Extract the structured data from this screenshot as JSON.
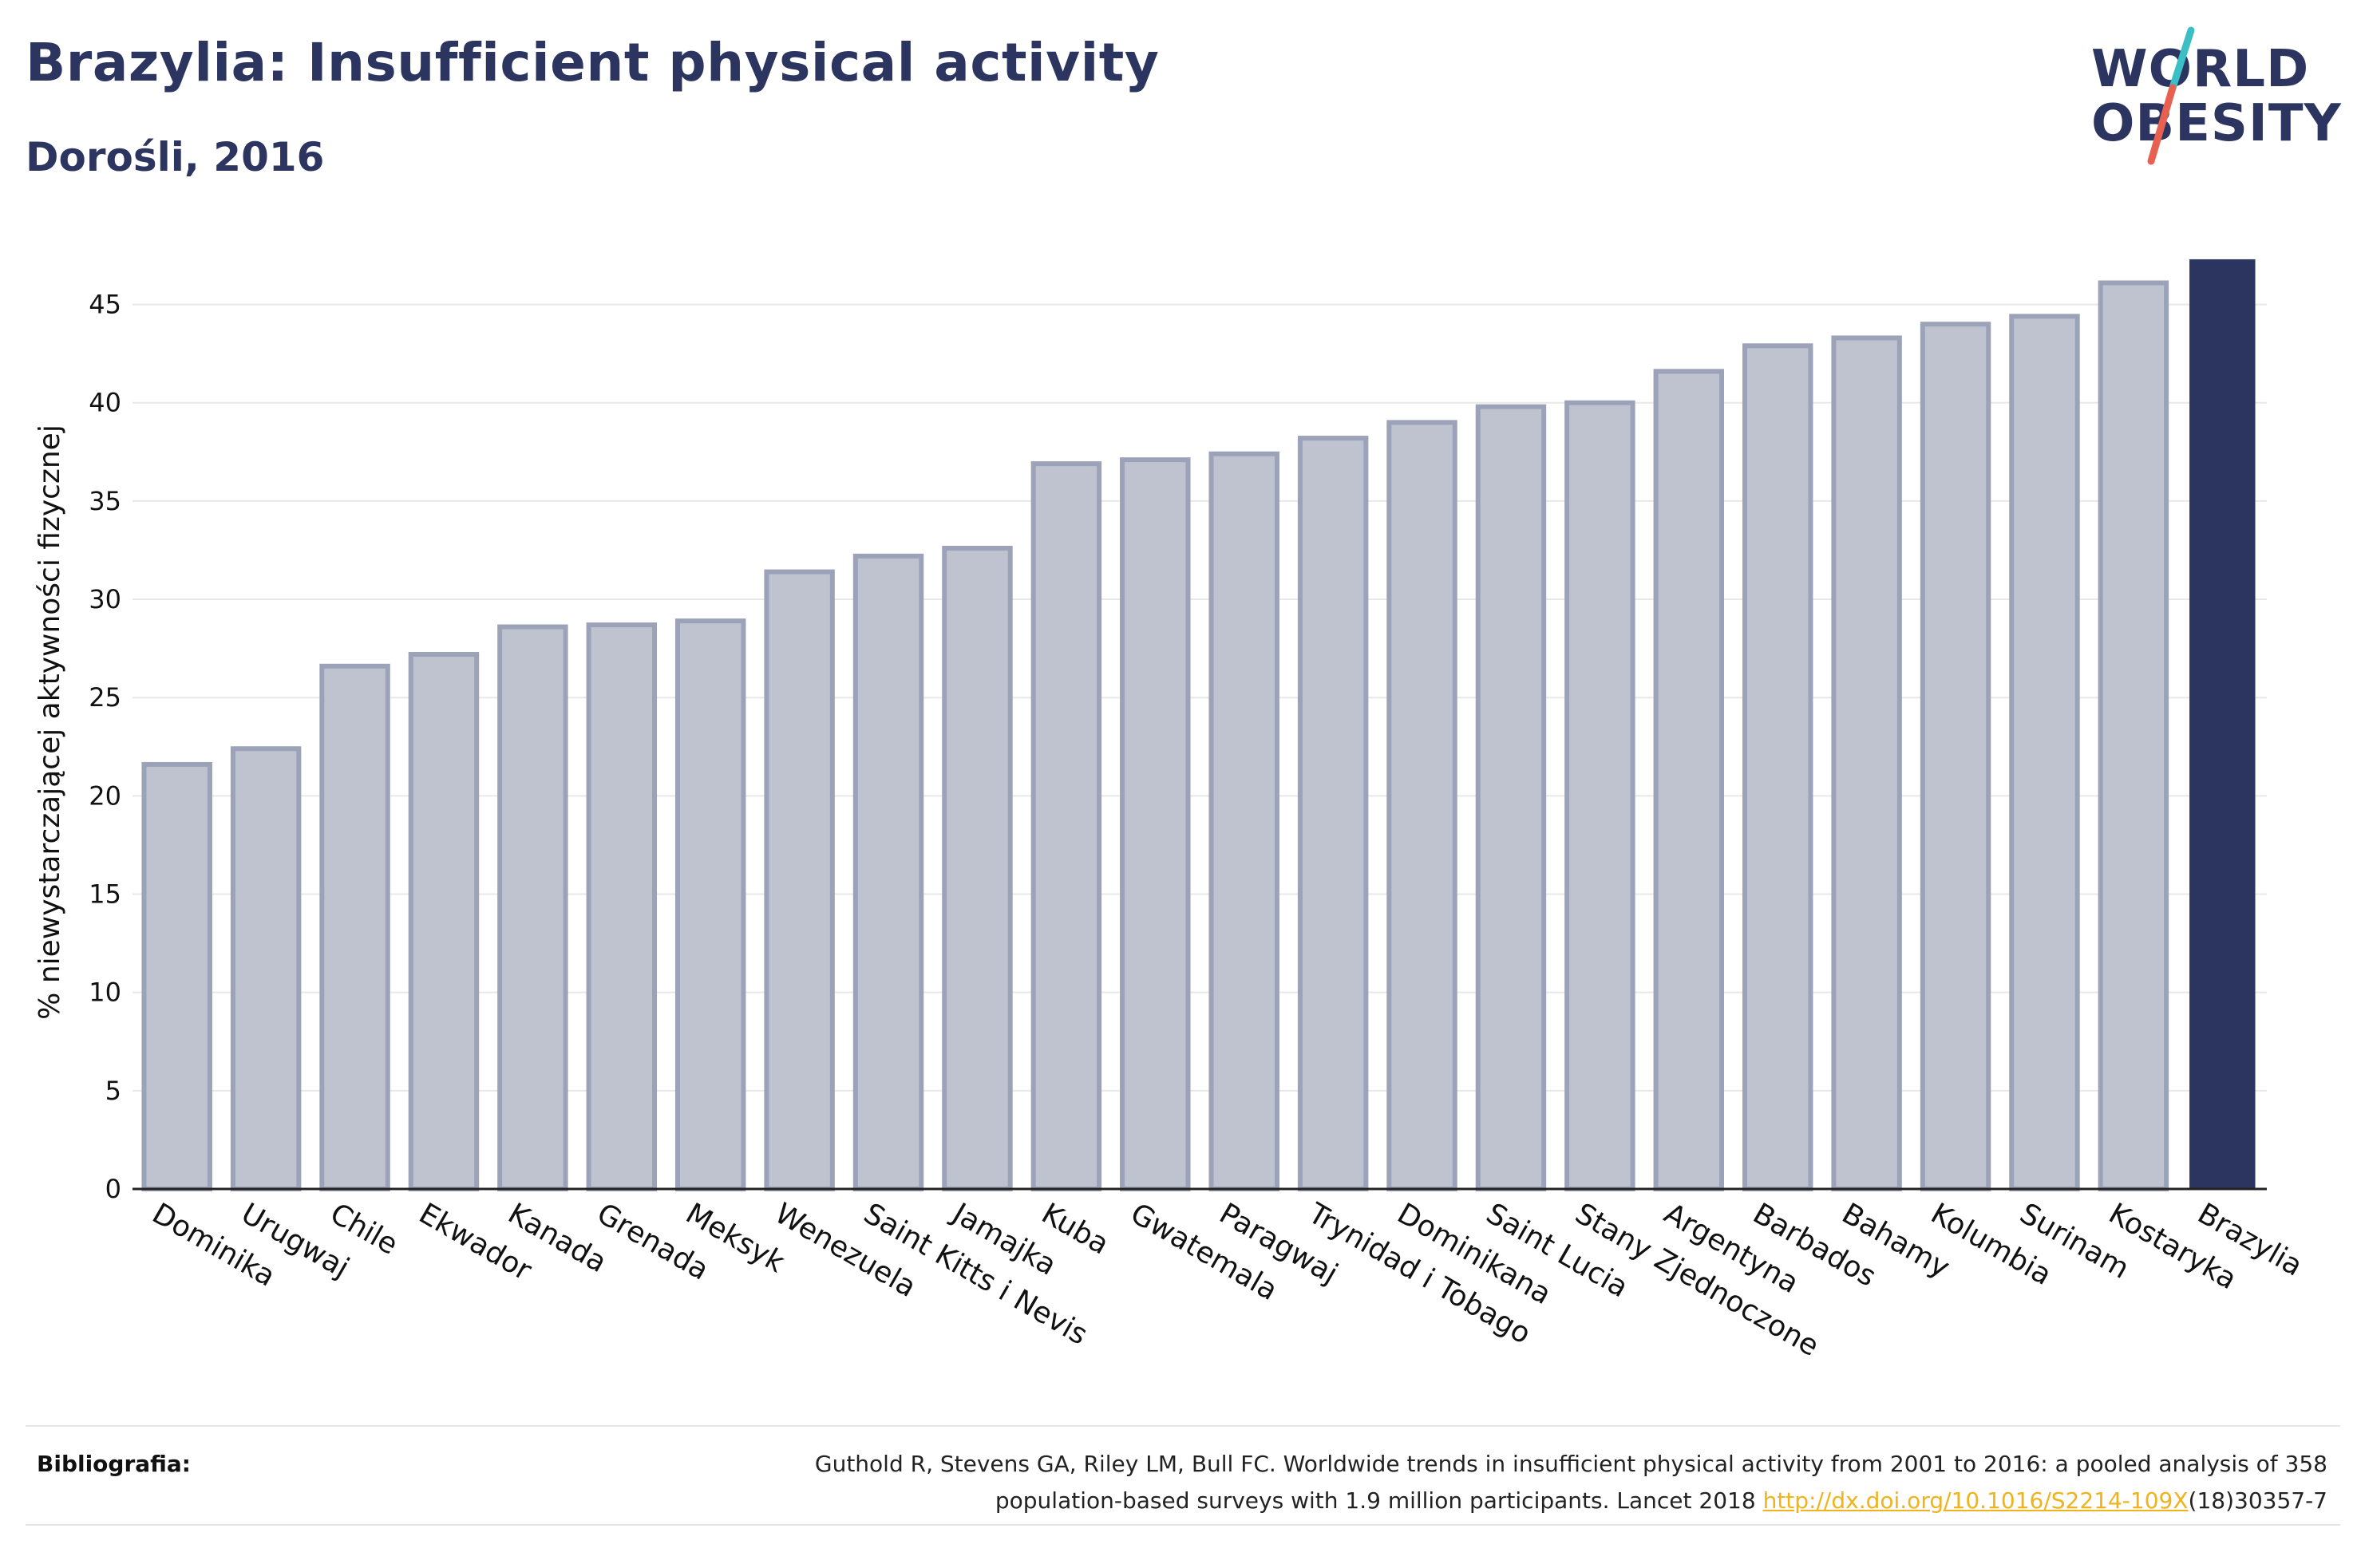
{
  "header": {
    "title": "Brazylia: Insufficient physical activity",
    "subtitle": "Dorośli, 2016"
  },
  "logo": {
    "line1": "WORLD",
    "line2": "OBESITY",
    "colors": {
      "text": "#2c3560",
      "slash_top": "#3bbfc4",
      "slash_bottom": "#e8604f"
    }
  },
  "colors": {
    "bar_fill": "#bfc3d0",
    "bar_stroke": "#9ca2b8",
    "highlight": "#2c3560",
    "grid": "#e8e8e8"
  },
  "chart_data": {
    "type": "bar",
    "title": "Brazylia: Insufficient physical activity",
    "subtitle": "Dorośli, 2016",
    "xlabel": "",
    "ylabel": "% niewystarczającej aktywności fizycznej",
    "ylim": [
      0,
      47.5
    ],
    "yticks": [
      0,
      5,
      10,
      15,
      20,
      25,
      30,
      35,
      40,
      45
    ],
    "grid": true,
    "highlight": "Brazylia",
    "categories": [
      "Dominika",
      "Urugwaj",
      "Chile",
      "Ekwador",
      "Kanada",
      "Grenada",
      "Meksyk",
      "Wenezuela",
      "Saint Kitts i Nevis",
      "Jamajka",
      "Kuba",
      "Gwatemala",
      "Paragwaj",
      "Trynidad i Tobago",
      "Dominikana",
      "Saint Lucia",
      "Stany Zjednoczone",
      "Argentyna",
      "Barbados",
      "Bahamy",
      "Kolumbia",
      "Surinam",
      "Kostaryka",
      "Brazylia"
    ],
    "values": [
      21.6,
      22.4,
      26.6,
      27.2,
      28.6,
      28.7,
      28.9,
      31.4,
      32.2,
      32.6,
      36.9,
      37.1,
      37.4,
      38.2,
      39.0,
      39.8,
      40.0,
      41.6,
      42.9,
      43.3,
      44.0,
      44.4,
      46.1,
      47.3
    ]
  },
  "footer": {
    "label": "Bibliografia:",
    "line1": "Guthold R, Stevens GA, Riley LM, Bull FC. Worldwide trends in insufficient physical activity from 2001 to 2016: a pooled analysis of 358",
    "line2_before": "population-based surveys with 1.9 million participants. Lancet 2018 ",
    "link_text": "http://dx.doi.org/10.1016/S2214-109X",
    "line2_after": "(18)30357-7"
  }
}
